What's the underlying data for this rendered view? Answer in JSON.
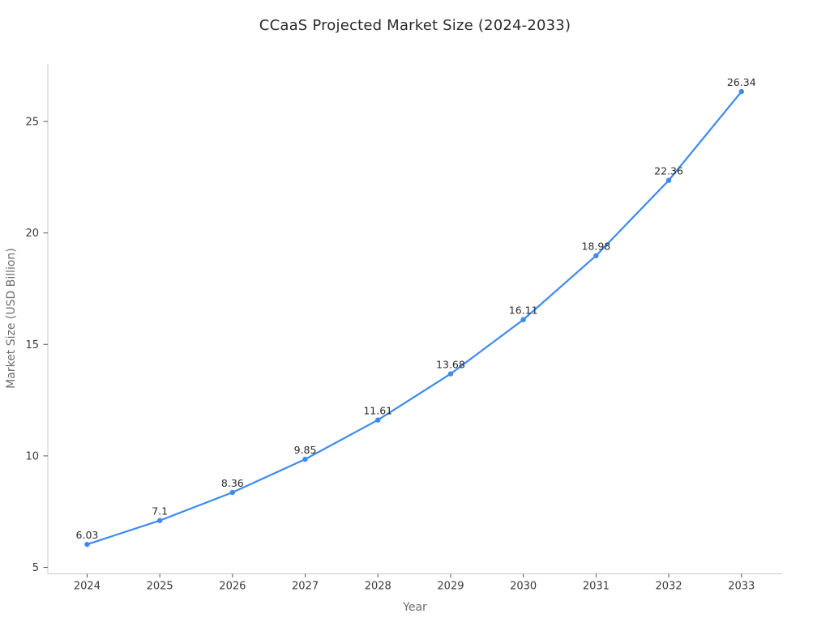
{
  "chart_data": {
    "type": "line",
    "title": "CCaaS Projected Market Size (2024-2033)",
    "xlabel": "Year",
    "ylabel": "Market Size (USD Billion)",
    "x": [
      2024,
      2025,
      2026,
      2027,
      2028,
      2029,
      2030,
      2031,
      2032,
      2033
    ],
    "series": [
      {
        "name": "Market Size (USD Billion)",
        "values": [
          6.03,
          7.1,
          8.36,
          9.85,
          11.61,
          13.68,
          16.11,
          18.98,
          22.36,
          26.34
        ],
        "point_labels": [
          "6.03",
          "7.1",
          "8.36",
          "9.85",
          "11.61",
          "13.68",
          "16.11",
          "18.98",
          "22.36",
          "26.34"
        ],
        "color": "#3d8af2",
        "marker": "circle",
        "line_style": "solid"
      }
    ],
    "yticks": [
      5,
      10,
      15,
      20,
      25
    ],
    "xlim": [
      2023.46,
      2033.56
    ],
    "ylim": [
      4.71,
      27.58
    ],
    "grid": false,
    "legend": "none",
    "style": {
      "background": "#ffffff",
      "title_color": "#2b2b2b",
      "axis_label_color": "#6e6e6e",
      "tick_label_color": "#3b3b3b",
      "point_label_color": "#2b2b2b",
      "spine_color": "#c9c9c9",
      "tick_color": "#555555"
    }
  }
}
